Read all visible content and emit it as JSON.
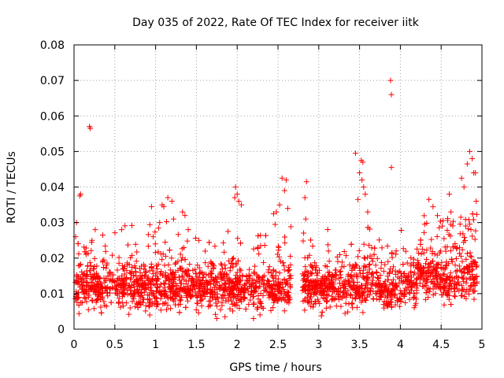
{
  "chart_data": {
    "type": "scatter",
    "title": "Day 035 of 2022, Rate Of TEC Index for receiver iitk",
    "xlabel": "GPS time / hours",
    "ylabel": "ROTI / TECUs",
    "xlim": [
      0,
      5
    ],
    "ylim": [
      0,
      0.08
    ],
    "grid": true,
    "marker": "plus",
    "point_color": "#ff0000",
    "x_ticks": [
      0,
      0.5,
      1,
      1.5,
      2,
      2.5,
      3,
      3.5,
      4,
      4.5,
      5
    ],
    "x_tick_labels": [
      "0",
      "0.5",
      "1",
      "1.5",
      "2",
      "2.5",
      "3",
      "3.5",
      "4",
      "4.5",
      "5"
    ],
    "y_ticks": [
      0,
      0.01,
      0.02,
      0.03,
      0.04,
      0.05,
      0.06,
      0.07,
      0.08
    ],
    "y_tick_labels": [
      "0",
      "0.01",
      "0.02",
      "0.03",
      "0.04",
      "0.05",
      "0.06",
      "0.07",
      "0.08"
    ],
    "notable_points": [
      {
        "x": 0.19,
        "y": 0.057
      },
      {
        "x": 0.2,
        "y": 0.0565
      },
      {
        "x": 0.07,
        "y": 0.0375
      },
      {
        "x": 0.08,
        "y": 0.038
      },
      {
        "x": 0.03,
        "y": 0.03
      },
      {
        "x": 0.02,
        "y": 0.026
      },
      {
        "x": 0.26,
        "y": 0.028
      },
      {
        "x": 0.22,
        "y": 0.025
      },
      {
        "x": 1.08,
        "y": 0.035
      },
      {
        "x": 1.1,
        "y": 0.0345
      },
      {
        "x": 1.15,
        "y": 0.037
      },
      {
        "x": 1.2,
        "y": 0.036
      },
      {
        "x": 1.22,
        "y": 0.031
      },
      {
        "x": 1.05,
        "y": 0.03
      },
      {
        "x": 1.33,
        "y": 0.033
      },
      {
        "x": 1.36,
        "y": 0.032
      },
      {
        "x": 1.4,
        "y": 0.028
      },
      {
        "x": 0.95,
        "y": 0.0345
      },
      {
        "x": 0.97,
        "y": 0.026
      },
      {
        "x": 1.98,
        "y": 0.04
      },
      {
        "x": 2.0,
        "y": 0.038
      },
      {
        "x": 2.02,
        "y": 0.036
      },
      {
        "x": 2.05,
        "y": 0.035
      },
      {
        "x": 1.97,
        "y": 0.037
      },
      {
        "x": 2.55,
        "y": 0.0425
      },
      {
        "x": 2.6,
        "y": 0.042
      },
      {
        "x": 2.58,
        "y": 0.039
      },
      {
        "x": 2.52,
        "y": 0.035
      },
      {
        "x": 2.62,
        "y": 0.034
      },
      {
        "x": 2.48,
        "y": 0.033
      },
      {
        "x": 2.85,
        "y": 0.0415
      },
      {
        "x": 2.83,
        "y": 0.037
      },
      {
        "x": 2.84,
        "y": 0.031
      },
      {
        "x": 3.52,
        "y": 0.0475
      },
      {
        "x": 3.54,
        "y": 0.047
      },
      {
        "x": 3.5,
        "y": 0.044
      },
      {
        "x": 3.53,
        "y": 0.042
      },
      {
        "x": 3.55,
        "y": 0.04
      },
      {
        "x": 3.57,
        "y": 0.038
      },
      {
        "x": 3.45,
        "y": 0.0495
      },
      {
        "x": 3.48,
        "y": 0.0365
      },
      {
        "x": 3.6,
        "y": 0.033
      },
      {
        "x": 3.88,
        "y": 0.07
      },
      {
        "x": 3.89,
        "y": 0.066
      },
      {
        "x": 3.89,
        "y": 0.0455
      },
      {
        "x": 4.85,
        "y": 0.05
      },
      {
        "x": 4.88,
        "y": 0.048
      },
      {
        "x": 4.9,
        "y": 0.044
      },
      {
        "x": 4.92,
        "y": 0.044
      },
      {
        "x": 4.82,
        "y": 0.0465
      },
      {
        "x": 4.75,
        "y": 0.0425
      },
      {
        "x": 4.78,
        "y": 0.04
      },
      {
        "x": 4.93,
        "y": 0.036
      },
      {
        "x": 4.6,
        "y": 0.038
      },
      {
        "x": 4.35,
        "y": 0.0365
      },
      {
        "x": 4.4,
        "y": 0.0345
      },
      {
        "x": 4.62,
        "y": 0.033
      },
      {
        "x": 1.85,
        "y": 0.0035
      },
      {
        "x": 1.75,
        "y": 0.003
      },
      {
        "x": 2.2,
        "y": 0.003
      }
    ],
    "series": [
      {
        "name": "ROTI",
        "description": "dense red plus-markers clustered mostly between 0.005 and 0.02 TECU across 0 to 4.95 hours, with a data gap near 2.65 to 2.8 hours"
      }
    ]
  }
}
